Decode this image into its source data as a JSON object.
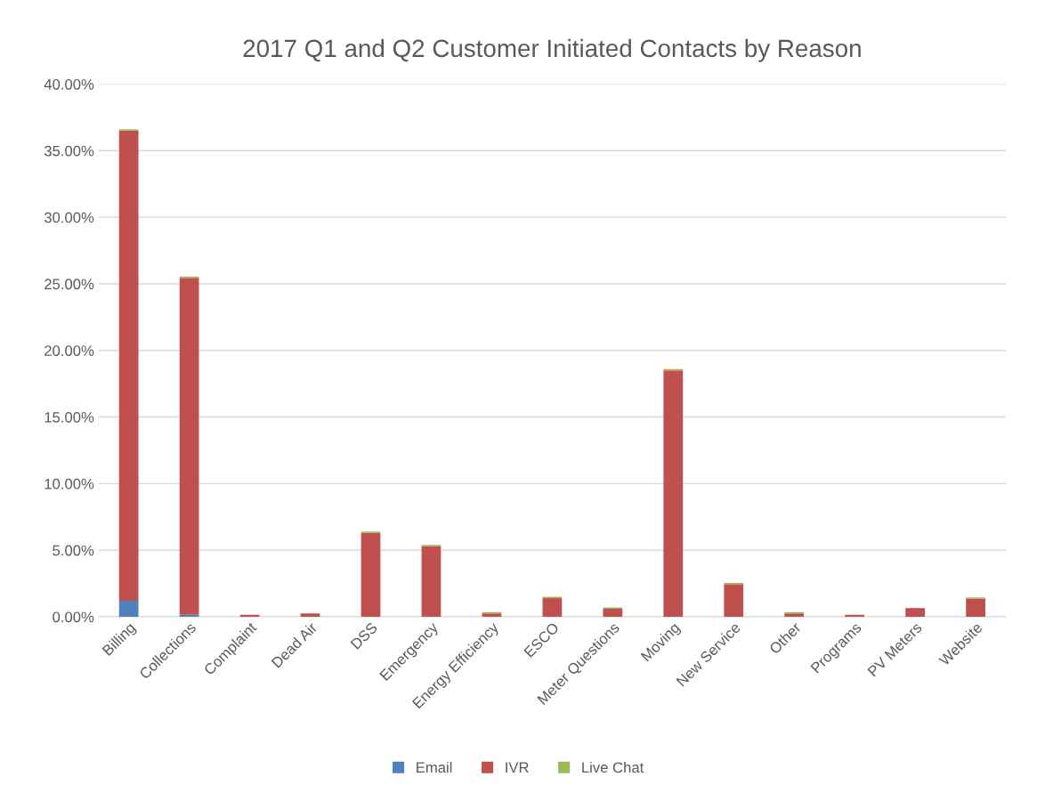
{
  "chart_data": {
    "type": "bar",
    "title": "2017 Q1 and Q2 Customer Initiated Contacts by Reason",
    "stacked": true,
    "categories": [
      "Billing",
      "Collections",
      "Complaint",
      "Dead Air",
      "DSS",
      "Emergency",
      "Energy Efficiency",
      "ESCO",
      "Meter Questions",
      "Moving",
      "New Service",
      "Other",
      "Programs",
      "PV Meters",
      "Website"
    ],
    "series": [
      {
        "name": "Email",
        "color": "#4f81bd",
        "values": [
          1.2,
          0.15,
          0,
          0,
          0,
          0,
          0,
          0,
          0,
          0,
          0,
          0,
          0,
          0,
          0
        ]
      },
      {
        "name": "IVR",
        "color": "#c0504d",
        "values": [
          35.3,
          25.3,
          0.15,
          0.25,
          6.3,
          5.3,
          0.25,
          1.4,
          0.6,
          18.5,
          2.45,
          0.25,
          0.15,
          0.65,
          1.35
        ]
      },
      {
        "name": "Live Chat",
        "color": "#9bbb59",
        "values": [
          0.1,
          0.1,
          0,
          0,
          0.1,
          0.1,
          0.1,
          0.1,
          0.1,
          0.1,
          0.1,
          0.1,
          0,
          0,
          0.1
        ]
      }
    ],
    "ylim": [
      0,
      40
    ],
    "yticks": [
      {
        "value": 0,
        "label": "0.00%"
      },
      {
        "value": 5,
        "label": "5.00%"
      },
      {
        "value": 10,
        "label": "10.00%"
      },
      {
        "value": 15,
        "label": "15.00%"
      },
      {
        "value": 20,
        "label": "20.00%"
      },
      {
        "value": 25,
        "label": "25.00%"
      },
      {
        "value": 30,
        "label": "30.00%"
      },
      {
        "value": 35,
        "label": "35.00%"
      },
      {
        "value": 40,
        "label": "40.00%"
      }
    ],
    "grid": "y",
    "legend": "bottom"
  }
}
